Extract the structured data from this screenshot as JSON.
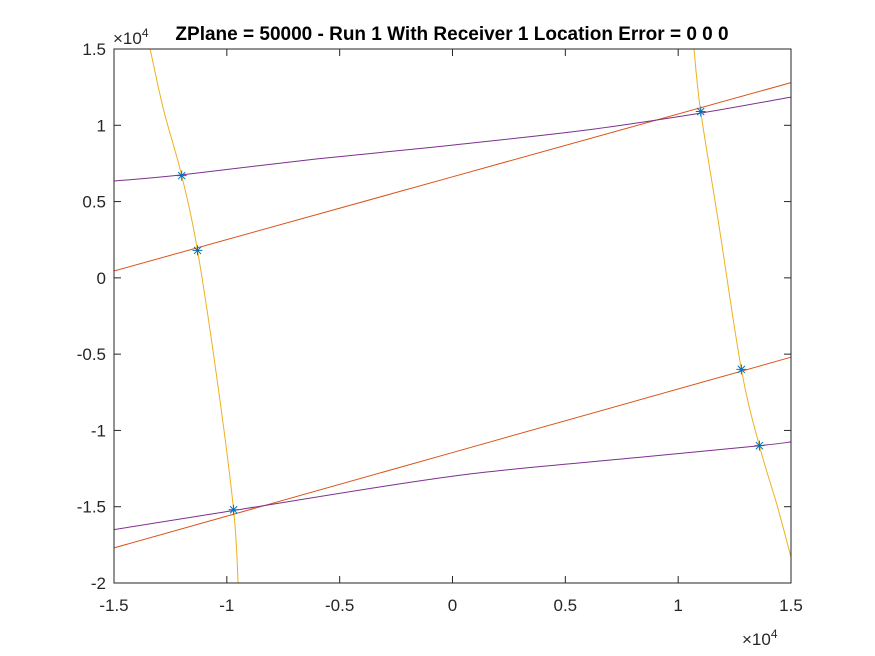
{
  "chart_data": {
    "type": "line",
    "title": "ZPlane = 50000 - Run 1 With Receiver 1 Location Error = 0  0  0",
    "xlabel": "",
    "ylabel": "",
    "xlim": [
      -15000,
      15000
    ],
    "ylim": [
      -20000,
      15000
    ],
    "x_ticks": [
      -15000,
      -10000,
      -5000,
      0,
      5000,
      10000,
      15000
    ],
    "x_tick_labels": [
      "-1.5",
      "-1",
      "-0.5",
      "0",
      "0.5",
      "1",
      "1.5"
    ],
    "y_ticks": [
      -20000,
      -15000,
      -10000,
      -5000,
      0,
      5000,
      10000,
      15000
    ],
    "y_tick_labels": [
      "-2",
      "-1.5",
      "-1",
      "-0.5",
      "0",
      "0.5",
      "1",
      "1.5"
    ],
    "x_exponent": {
      "base": "×10",
      "power": "4"
    },
    "y_exponent": {
      "base": "×10",
      "power": "4"
    },
    "grid": false,
    "colors": {
      "orange": "#D95319",
      "yellow": "#EDB120",
      "purple": "#7E2F8E",
      "marker": "#0072BD",
      "axis": "#262626"
    },
    "series": [
      {
        "color": "orange",
        "points": [
          [
            -15000,
            450
          ],
          [
            15000,
            12800
          ]
        ]
      },
      {
        "color": "orange",
        "points": [
          [
            -15000,
            -17700
          ],
          [
            15000,
            -5200
          ]
        ]
      },
      {
        "color": "purple",
        "points": [
          [
            -15000,
            6350
          ],
          [
            -12000,
            6750
          ],
          [
            -6000,
            7800
          ],
          [
            0,
            8700
          ],
          [
            6000,
            9700
          ],
          [
            11000,
            10800
          ],
          [
            15000,
            11850
          ]
        ]
      },
      {
        "color": "purple",
        "points": [
          [
            -15000,
            -16500
          ],
          [
            -9700,
            -15250
          ],
          [
            0,
            -13000
          ],
          [
            8000,
            -11800
          ],
          [
            13600,
            -11000
          ],
          [
            15000,
            -10750
          ]
        ]
      },
      {
        "color": "yellow",
        "points": [
          [
            -13400,
            15000
          ],
          [
            -12800,
            11000
          ],
          [
            -12000,
            6700
          ],
          [
            -11300,
            1800
          ],
          [
            -10400,
            -7000
          ],
          [
            -9700,
            -15200
          ],
          [
            -9500,
            -20000
          ]
        ]
      },
      {
        "color": "yellow",
        "points": [
          [
            10700,
            15000
          ],
          [
            11000,
            10900
          ],
          [
            11800,
            3500
          ],
          [
            12800,
            -6000
          ],
          [
            13600,
            -11000
          ],
          [
            14400,
            -15000
          ],
          [
            15000,
            -18300
          ]
        ]
      }
    ],
    "markers": [
      [
        -12000,
        6700
      ],
      [
        -11300,
        1800
      ],
      [
        -9700,
        -15200
      ],
      [
        11000,
        10900
      ],
      [
        12800,
        -6000
      ],
      [
        13600,
        -11000
      ]
    ]
  }
}
